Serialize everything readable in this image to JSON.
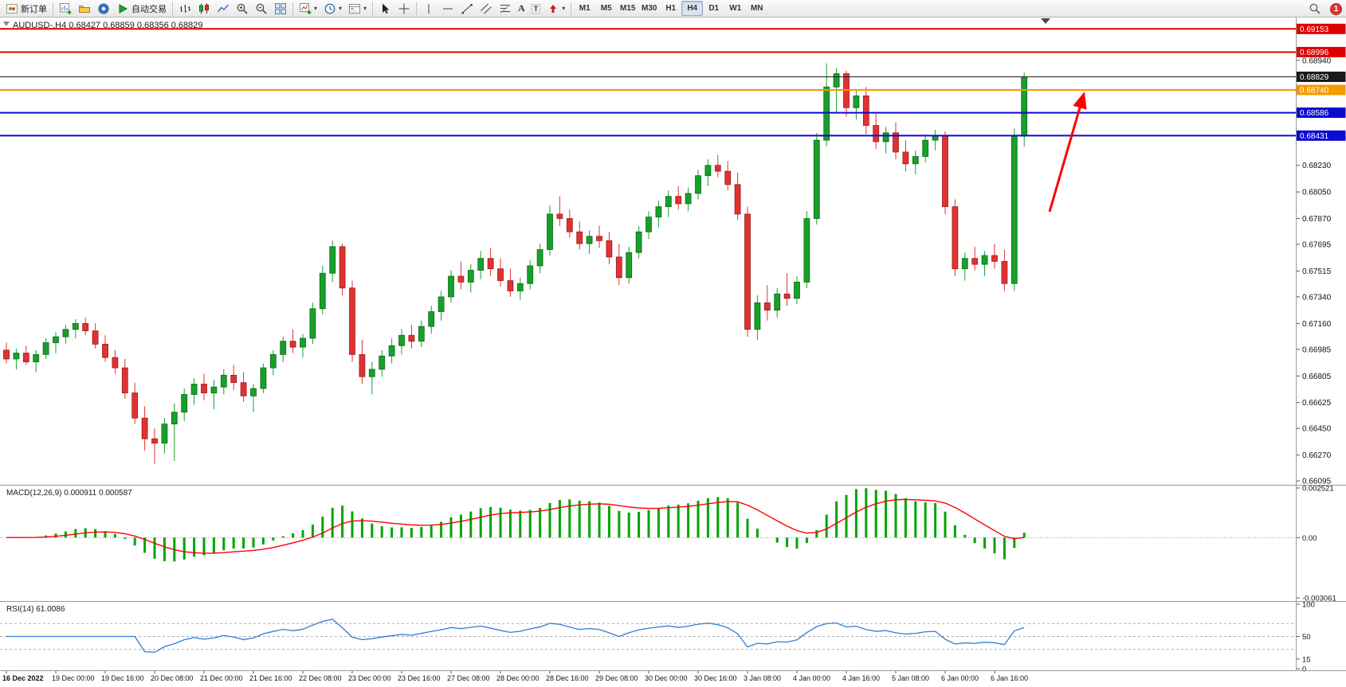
{
  "toolbar": {
    "new_order_label": "新订单",
    "autotrading_label": "自动交易",
    "timeframes": [
      "M1",
      "M5",
      "M15",
      "M30",
      "H1",
      "H4",
      "D1",
      "W1",
      "MN"
    ],
    "active_timeframe": "H4",
    "notification_badge": "1"
  },
  "chart_data": {
    "type": "candlestick",
    "symbol": "AUDUSD-",
    "period": "H4",
    "symbol_info": "AUDUSD-,H4  0.68427 0.68859 0.68356 0.68829",
    "ohlc_header": {
      "open": "0.68427",
      "high": "0.68859",
      "low": "0.68356",
      "close": "0.68829"
    },
    "candles": [
      [
        0.6698,
        0.6703,
        0.6689,
        0.6692
      ],
      [
        0.6692,
        0.6699,
        0.6685,
        0.6696
      ],
      [
        0.6696,
        0.6701,
        0.6688,
        0.669
      ],
      [
        0.669,
        0.6698,
        0.6683,
        0.6695
      ],
      [
        0.6695,
        0.6706,
        0.6692,
        0.6703
      ],
      [
        0.6703,
        0.671,
        0.6696,
        0.6707
      ],
      [
        0.6707,
        0.6715,
        0.6702,
        0.6712
      ],
      [
        0.6712,
        0.6719,
        0.6706,
        0.6716
      ],
      [
        0.6716,
        0.672,
        0.6708,
        0.6711
      ],
      [
        0.6711,
        0.6716,
        0.6699,
        0.6702
      ],
      [
        0.6702,
        0.6708,
        0.669,
        0.6693
      ],
      [
        0.6693,
        0.6698,
        0.6682,
        0.6686
      ],
      [
        0.6686,
        0.6692,
        0.6665,
        0.6669
      ],
      [
        0.6669,
        0.6676,
        0.6648,
        0.6652
      ],
      [
        0.6652,
        0.666,
        0.663,
        0.6638
      ],
      [
        0.6638,
        0.6645,
        0.6621,
        0.6635
      ],
      [
        0.6635,
        0.6652,
        0.6628,
        0.6648
      ],
      [
        0.6648,
        0.6662,
        0.6623,
        0.6656
      ],
      [
        0.6656,
        0.6672,
        0.665,
        0.6668
      ],
      [
        0.6668,
        0.6679,
        0.6661,
        0.6675
      ],
      [
        0.6675,
        0.6682,
        0.6664,
        0.6669
      ],
      [
        0.6669,
        0.6678,
        0.6658,
        0.6673
      ],
      [
        0.6673,
        0.6685,
        0.6668,
        0.6681
      ],
      [
        0.6681,
        0.6688,
        0.6671,
        0.6676
      ],
      [
        0.6676,
        0.6683,
        0.6663,
        0.6667
      ],
      [
        0.6667,
        0.6675,
        0.6656,
        0.6672
      ],
      [
        0.6672,
        0.6689,
        0.6669,
        0.6686
      ],
      [
        0.6686,
        0.6698,
        0.6681,
        0.6695
      ],
      [
        0.6695,
        0.6707,
        0.669,
        0.6704
      ],
      [
        0.6704,
        0.6712,
        0.6696,
        0.67
      ],
      [
        0.67,
        0.6709,
        0.6693,
        0.6706
      ],
      [
        0.6706,
        0.673,
        0.6702,
        0.6726
      ],
      [
        0.6726,
        0.6755,
        0.6722,
        0.675
      ],
      [
        0.675,
        0.6772,
        0.6744,
        0.6768
      ],
      [
        0.6768,
        0.677,
        0.6735,
        0.674
      ],
      [
        0.674,
        0.6745,
        0.669,
        0.6695
      ],
      [
        0.6695,
        0.6705,
        0.6675,
        0.668
      ],
      [
        0.668,
        0.669,
        0.6668,
        0.6685
      ],
      [
        0.6685,
        0.6698,
        0.668,
        0.6694
      ],
      [
        0.6694,
        0.6706,
        0.6689,
        0.6701
      ],
      [
        0.6701,
        0.6712,
        0.6695,
        0.6708
      ],
      [
        0.6708,
        0.6715,
        0.6699,
        0.6704
      ],
      [
        0.6704,
        0.6718,
        0.67,
        0.6714
      ],
      [
        0.6714,
        0.6728,
        0.6709,
        0.6724
      ],
      [
        0.6724,
        0.6738,
        0.6718,
        0.6734
      ],
      [
        0.6734,
        0.6752,
        0.673,
        0.6748
      ],
      [
        0.6748,
        0.6758,
        0.6739,
        0.6744
      ],
      [
        0.6744,
        0.6756,
        0.6737,
        0.6752
      ],
      [
        0.6752,
        0.6765,
        0.6746,
        0.676
      ],
      [
        0.676,
        0.6767,
        0.6748,
        0.6753
      ],
      [
        0.6753,
        0.676,
        0.6741,
        0.6745
      ],
      [
        0.6745,
        0.6753,
        0.6734,
        0.6738
      ],
      [
        0.6738,
        0.6747,
        0.6732,
        0.6743
      ],
      [
        0.6743,
        0.6759,
        0.6739,
        0.6755
      ],
      [
        0.6755,
        0.677,
        0.675,
        0.6766
      ],
      [
        0.6766,
        0.6796,
        0.6762,
        0.679
      ],
      [
        0.679,
        0.6802,
        0.6782,
        0.6787
      ],
      [
        0.6787,
        0.6793,
        0.6774,
        0.6778
      ],
      [
        0.6778,
        0.6785,
        0.6766,
        0.677
      ],
      [
        0.677,
        0.6779,
        0.6763,
        0.6775
      ],
      [
        0.6775,
        0.6782,
        0.6767,
        0.6772
      ],
      [
        0.6772,
        0.6778,
        0.6756,
        0.6761
      ],
      [
        0.6761,
        0.677,
        0.6742,
        0.6747
      ],
      [
        0.6747,
        0.6768,
        0.6743,
        0.6764
      ],
      [
        0.6764,
        0.6782,
        0.676,
        0.6778
      ],
      [
        0.6778,
        0.6792,
        0.6773,
        0.6788
      ],
      [
        0.6788,
        0.6799,
        0.6781,
        0.6795
      ],
      [
        0.6795,
        0.6806,
        0.6788,
        0.6802
      ],
      [
        0.6802,
        0.6809,
        0.6793,
        0.6797
      ],
      [
        0.6797,
        0.6808,
        0.6792,
        0.6804
      ],
      [
        0.6804,
        0.682,
        0.68,
        0.6816
      ],
      [
        0.6816,
        0.6827,
        0.6809,
        0.6823
      ],
      [
        0.6823,
        0.683,
        0.6815,
        0.6819
      ],
      [
        0.6819,
        0.6826,
        0.6806,
        0.681
      ],
      [
        0.681,
        0.6818,
        0.6786,
        0.679
      ],
      [
        0.679,
        0.6795,
        0.6707,
        0.6712
      ],
      [
        0.6712,
        0.6735,
        0.6705,
        0.673
      ],
      [
        0.673,
        0.6742,
        0.6718,
        0.6725
      ],
      [
        0.6725,
        0.674,
        0.672,
        0.6736
      ],
      [
        0.6736,
        0.675,
        0.6728,
        0.6733
      ],
      [
        0.6733,
        0.6748,
        0.6729,
        0.6744
      ],
      [
        0.6744,
        0.6792,
        0.674,
        0.6787
      ],
      [
        0.6787,
        0.6845,
        0.6783,
        0.684
      ],
      [
        0.684,
        0.6892,
        0.6836,
        0.6876
      ],
      [
        0.6876,
        0.6889,
        0.6858,
        0.6885
      ],
      [
        0.6885,
        0.6887,
        0.6856,
        0.6862
      ],
      [
        0.6862,
        0.6874,
        0.6854,
        0.687
      ],
      [
        0.687,
        0.6876,
        0.6844,
        0.685
      ],
      [
        0.685,
        0.6858,
        0.6834,
        0.6839
      ],
      [
        0.6839,
        0.6849,
        0.6831,
        0.6845
      ],
      [
        0.6845,
        0.6852,
        0.6827,
        0.6832
      ],
      [
        0.6832,
        0.684,
        0.6819,
        0.6824
      ],
      [
        0.6824,
        0.6833,
        0.6817,
        0.6829
      ],
      [
        0.6829,
        0.6844,
        0.6825,
        0.684
      ],
      [
        0.684,
        0.6847,
        0.6833,
        0.6843
      ],
      [
        0.6843,
        0.6846,
        0.679,
        0.6795
      ],
      [
        0.6795,
        0.68,
        0.6748,
        0.6753
      ],
      [
        0.6753,
        0.6764,
        0.6745,
        0.676
      ],
      [
        0.676,
        0.6768,
        0.6752,
        0.6756
      ],
      [
        0.6756,
        0.6765,
        0.6748,
        0.6762
      ],
      [
        0.6762,
        0.677,
        0.6753,
        0.6758
      ],
      [
        0.6758,
        0.6766,
        0.6738,
        0.6743
      ],
      [
        0.6743,
        0.6848,
        0.6738,
        0.6843
      ],
      [
        0.68427,
        0.68859,
        0.68356,
        0.68829
      ]
    ],
    "up_color": "#18a02b",
    "down_color": "#e03232",
    "price_ticks": [
      "0.69120",
      "0.68940",
      "0.68760",
      "0.68585",
      "0.68405",
      "0.68230",
      "0.68050",
      "0.67870",
      "0.67695",
      "0.67515",
      "0.67340",
      "0.67160",
      "0.66985",
      "0.66805",
      "0.66625",
      "0.66450",
      "0.66270",
      "0.66095"
    ],
    "levels": [
      {
        "label": "0.69153",
        "value": 0.69153,
        "color": "#dd0000",
        "thickness": 2
      },
      {
        "label": "0.68996",
        "value": 0.68996,
        "color": "#dd0000",
        "thickness": 2
      },
      {
        "label": "0.68829",
        "value": 0.68829,
        "color": "#1a1a1a",
        "thickness": 1
      },
      {
        "label": "0.68740",
        "value": 0.6874,
        "color": "#f59a00",
        "thickness": 2
      },
      {
        "label": "0.68586",
        "value": 0.68586,
        "color": "#0b0bcf",
        "thickness": 2
      },
      {
        "label": "0.68431",
        "value": 0.68431,
        "color": "#0b0bcf",
        "thickness": 2
      }
    ],
    "time_labels": [
      "16 Dec 2022",
      "19 Dec 00:00",
      "19 Dec 16:00",
      "20 Dec 08:00",
      "21 Dec 00:00",
      "21 Dec 16:00",
      "22 Dec 08:00",
      "23 Dec 00:00",
      "23 Dec 16:00",
      "27 Dec 08:00",
      "28 Dec 00:00",
      "28 Dec 16:00",
      "29 Dec 08:00",
      "30 Dec 00:00",
      "30 Dec 16:00",
      "3 Jan 08:00",
      "4 Jan 00:00",
      "4 Jan 16:00",
      "5 Jan 08:00",
      "6 Jan 00:00",
      "6 Jan 16:00"
    ],
    "macd": {
      "label_full": "MACD(12,26,9) 0.000911 0.000587",
      "name": "MACD",
      "params": "12,26,9",
      "main_value": "0.000911",
      "signal_value": "0.000587",
      "max": 0.002521,
      "min": -0.003061,
      "scale": [
        {
          "label": "0.002521",
          "value": 0.002521
        },
        {
          "label": "0.00",
          "value": 0
        },
        {
          "label": "-0.003061",
          "value": -0.003061
        }
      ],
      "histogram_color": "#00a400",
      "signal_color": "#ff0000"
    },
    "rsi": {
      "label_full": "RSI(14) 61.0086",
      "name": "RSI",
      "period": "14",
      "value": "61.0086",
      "line_color": "#2f7ed8",
      "levels": [
        70,
        50,
        30
      ],
      "scale": [
        {
          "label": "100",
          "value": 100
        },
        {
          "label": "50",
          "value": 50
        },
        {
          "label": "15",
          "value": 15
        },
        {
          "label": "0",
          "value": 0
        }
      ]
    },
    "annotation_arrow": {
      "color": "#ff0000"
    }
  }
}
